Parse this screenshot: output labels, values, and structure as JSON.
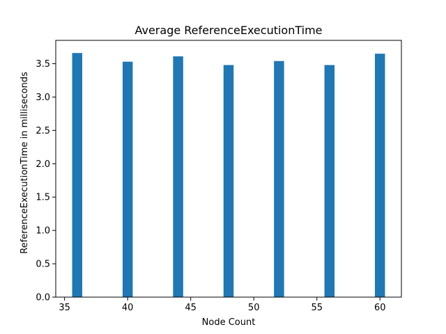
{
  "chart_data": {
    "type": "bar",
    "title": "Average ReferenceExecutionTime",
    "xlabel": "Node Count",
    "ylabel": "ReferenceExecutionTime in milliseconds",
    "x": [
      36,
      40,
      44,
      48,
      52,
      56,
      60
    ],
    "values": [
      3.66,
      3.53,
      3.61,
      3.48,
      3.54,
      3.48,
      3.65
    ],
    "bar_width": 0.8,
    "xlim": [
      34.3,
      61.7
    ],
    "ylim": [
      0,
      3.85
    ],
    "xticks": [
      35,
      40,
      45,
      50,
      55,
      60
    ],
    "yticks": [
      0.0,
      0.5,
      1.0,
      1.5,
      2.0,
      2.5,
      3.0,
      3.5
    ],
    "xtick_labels": [
      "35",
      "40",
      "45",
      "50",
      "55",
      "60"
    ],
    "ytick_labels": [
      "0.0",
      "0.5",
      "1.0",
      "1.5",
      "2.0",
      "2.5",
      "3.0",
      "3.5"
    ],
    "bar_color": "#1f77b4",
    "grid": false,
    "legend": "none"
  }
}
